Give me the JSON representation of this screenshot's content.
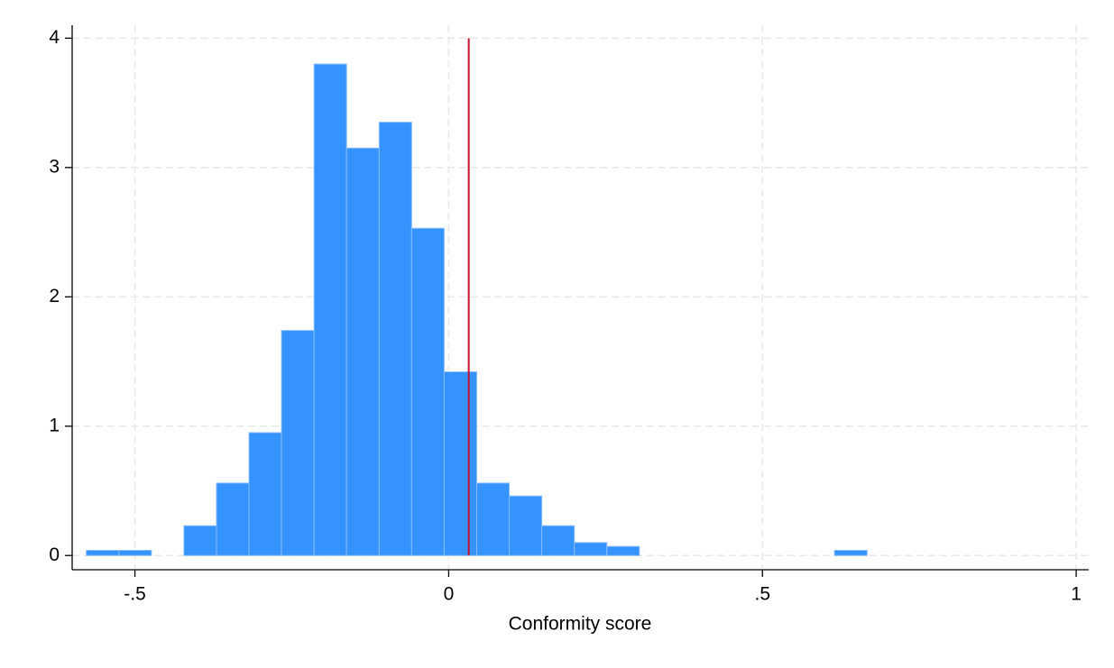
{
  "chart_data": {
    "type": "histogram",
    "x_label": "Conformity score",
    "bins": [
      -0.5774,
      -0.5256,
      -0.4737,
      -0.4219,
      -0.37,
      -0.3182,
      -0.2664,
      -0.2145,
      -0.1627,
      -0.1108,
      -0.059,
      -0.0072,
      0.0447,
      0.0965,
      0.1484,
      0.2002,
      0.252,
      0.3039,
      0.3557,
      0.4076,
      0.4594,
      0.5112,
      0.5631,
      0.6149,
      0.6668
    ],
    "values": [
      0.04,
      0.04,
      0,
      0.23,
      0.56,
      0.95,
      1.74,
      3.8,
      3.15,
      3.35,
      2.53,
      1.42,
      0.56,
      0.46,
      0.23,
      0.1,
      0.07,
      0,
      0,
      0,
      0,
      0,
      0,
      0.04
    ],
    "color": "#3593ff",
    "edge_color": "#86bcff",
    "xlim": [
      -0.6,
      1.02
    ],
    "ylim": [
      -0.11,
      4.1
    ],
    "xticks": [
      {
        "value": -0.5,
        "label": "-.5"
      },
      0,
      {
        "value": 0.5,
        "label": ".5"
      },
      1
    ],
    "yticks": [
      0,
      1,
      2,
      3,
      4
    ],
    "grid": true,
    "vline": {
      "x": 0.032,
      "y": [
        0,
        4
      ],
      "color": "#c8102e"
    }
  }
}
